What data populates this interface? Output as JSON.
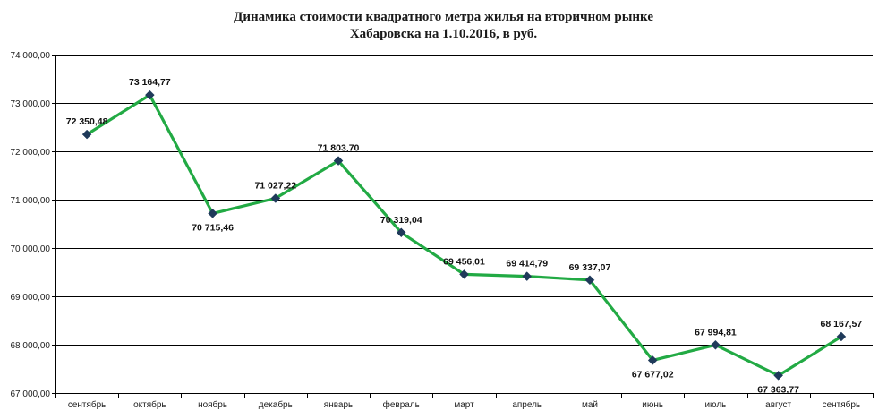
{
  "chart_data": {
    "type": "line",
    "title_line1": "Динамика стоимости квадратного метра жилья на вторичном рынке",
    "title_line2": "Хабаровска на 1.10.2016, в руб.",
    "categories": [
      "сентябрь",
      "октябрь",
      "ноябрь",
      "декабрь",
      "январь",
      "февраль",
      "март",
      "апрель",
      "май",
      "июнь",
      "июль",
      "август",
      "сентябрь"
    ],
    "series": [
      {
        "values": [
          72350.48,
          73164.77,
          70715.46,
          71027.22,
          71803.7,
          70319.04,
          69456.01,
          69414.79,
          69337.07,
          67677.02,
          67994.81,
          67363.77,
          68167.57
        ],
        "labels": [
          "72 350,48",
          "73 164,77",
          "70 715,46",
          "71 027,22",
          "71 803,70",
          "70 319,04",
          "69 456,01",
          "69 414,79",
          "69 337,07",
          "67 677,02",
          "67 994,81",
          "67 363,77",
          "68 167,57"
        ],
        "color": "#22aa44",
        "marker_color": "#1f3a5a"
      }
    ],
    "xlabel": "",
    "ylabel": "",
    "ylim": [
      67000,
      74000
    ],
    "yticks": [
      67000,
      68000,
      69000,
      70000,
      71000,
      72000,
      73000,
      74000
    ],
    "ytick_labels": [
      "67 000,00",
      "68 000,00",
      "69 000,00",
      "70 000,00",
      "71 000,00",
      "72 000,00",
      "73 000,00",
      "74 000,00"
    ],
    "grid": true,
    "legend": "none"
  }
}
